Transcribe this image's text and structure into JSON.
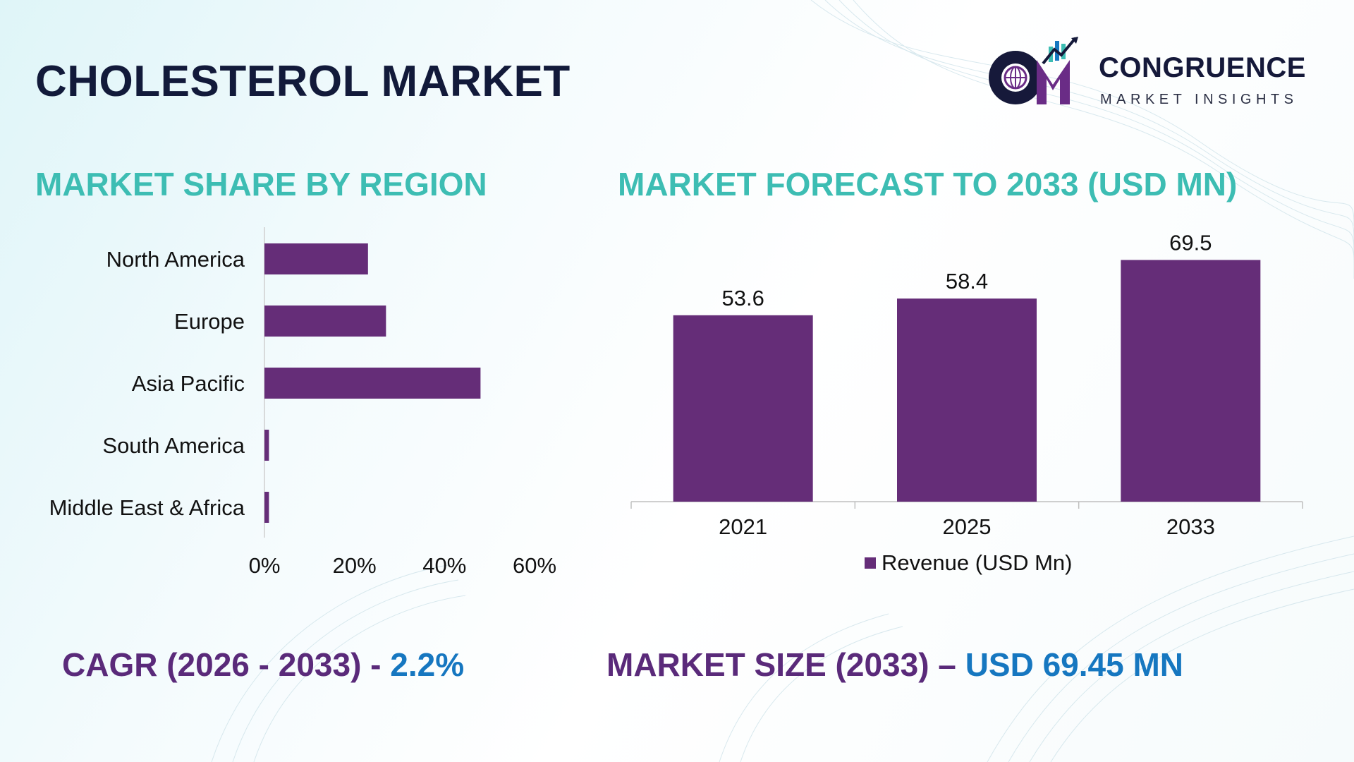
{
  "header": {
    "title": "CHOLESTEROL MARKET"
  },
  "logo": {
    "name": "CONGRUENCE",
    "tagline": "MARKET INSIGHTS",
    "mark_text": "CM"
  },
  "colors": {
    "bar": "#652d78",
    "section_title": "#3dbdb3",
    "stat_label": "#5a2a7a",
    "stat_value": "#1677c0",
    "title": "#121a3a"
  },
  "sections": {
    "share_title": "MARKET SHARE BY REGION",
    "forecast_title": "MARKET FORECAST TO 2033 (USD MN)"
  },
  "stats": {
    "cagr_label": "CAGR (2026 - 2033) - ",
    "cagr_value": "2.2%",
    "size_label": "MARKET SIZE (2033) – ",
    "size_value": "USD 69.45 MN"
  },
  "chart_data": [
    {
      "type": "bar",
      "orientation": "horizontal",
      "title": "MARKET SHARE BY REGION",
      "categories": [
        "North America",
        "Europe",
        "Asia Pacific",
        "South America",
        "Middle East & Africa"
      ],
      "values": [
        23,
        27,
        48,
        1,
        1
      ],
      "xlim": [
        0,
        60
      ],
      "xticks": [
        "0%",
        "20%",
        "40%",
        "60%"
      ],
      "grid": false
    },
    {
      "type": "bar",
      "orientation": "vertical",
      "title": "MARKET FORECAST TO 2033 (USD MN)",
      "categories": [
        "2021",
        "2025",
        "2033"
      ],
      "series": [
        {
          "name": "Revenue (USD Mn)",
          "values": [
            53.6,
            58.4,
            69.5
          ]
        }
      ],
      "data_labels": [
        "53.6",
        "58.4",
        "69.5"
      ],
      "ylim": [
        0,
        70
      ],
      "grid": false,
      "legend_position": "bottom"
    }
  ]
}
